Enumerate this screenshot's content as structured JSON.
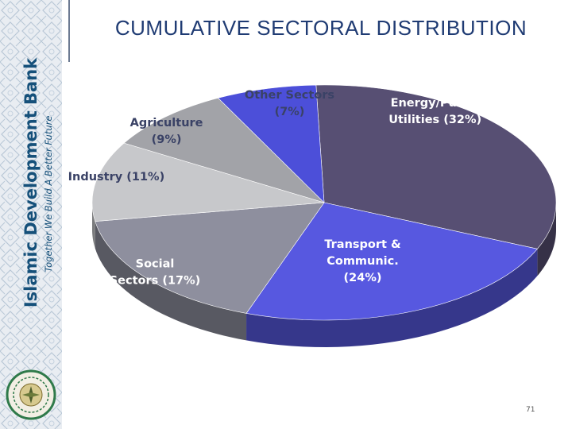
{
  "title": "CUMULATIVE SECTORAL DISTRIBUTION",
  "brand": {
    "name": "Islamic Development Bank",
    "tagline": "Together We Build A Better Future"
  },
  "page_number": "71",
  "colors": {
    "title": "#1f3b73",
    "brand": "#15507a",
    "energy": "#574f73",
    "transport": "#5758e0",
    "social": "#8e8f9e",
    "industry": "#c7c8cb",
    "agriculture": "#a2a3a8",
    "other": "#4c4fd9"
  },
  "chart_data": {
    "type": "pie",
    "title": "CUMULATIVE SECTORAL DISTRIBUTION",
    "legend": "none",
    "slices": [
      {
        "label": "Energy/Public Utilities (32%)",
        "label_lines": [
          "Energy/Public",
          "Utilities (32%)"
        ],
        "value": 32,
        "color_key": "energy"
      },
      {
        "label": "Transport & Communic. (24%)",
        "label_lines": [
          "Transport &",
          "Communic.",
          "(24%)"
        ],
        "value": 24,
        "color_key": "transport"
      },
      {
        "label": "Social Sectors (17%)",
        "label_lines": [
          "Social",
          "Sectors (17%)"
        ],
        "value": 17,
        "color_key": "social"
      },
      {
        "label": "Industry (11%)",
        "label_lines": [
          "Industry (11%)"
        ],
        "value": 11,
        "color_key": "industry"
      },
      {
        "label": "Agriculture (9%)",
        "label_lines": [
          "Agriculture",
          "(9%)"
        ],
        "value": 9,
        "color_key": "agriculture"
      },
      {
        "label": "Other Sectors (7%)",
        "label_lines": [
          "Other Sectors",
          "(7%)"
        ],
        "value": 7,
        "color_key": "other"
      }
    ]
  }
}
